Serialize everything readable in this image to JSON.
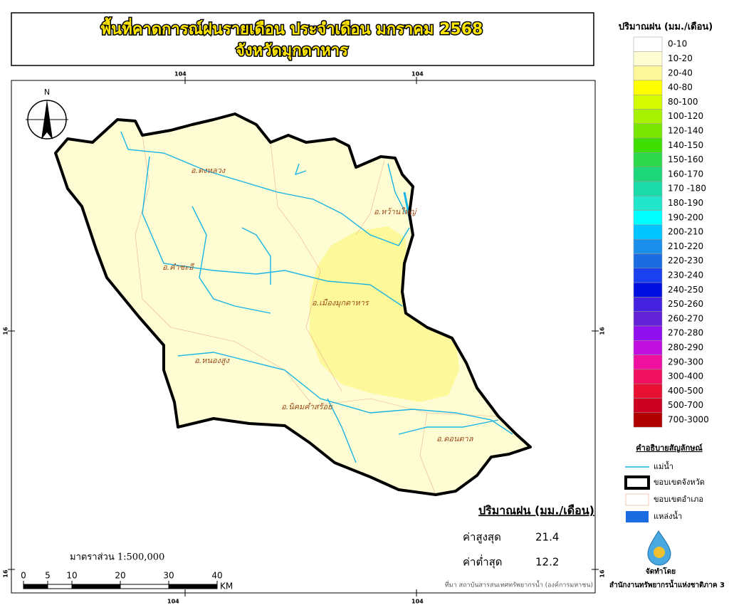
{
  "header": {
    "title": "พื้นที่คาดการณ์ฝนรายเดือน ประจำเดือน มกราคม 2568",
    "subtitle": "จังหวัดมุกดาหาร"
  },
  "grid_labels": {
    "lon": "104",
    "lat": "16"
  },
  "north": "N",
  "districts": [
    "อ.ดงหลวง",
    "อ.หว้านใหญ่",
    "อ.คำชะอี",
    "อ.เมืองมุกดาหาร",
    "อ.หนองสูง",
    "อ.นิคมคำสร้อย",
    "อ.ดอนตาล"
  ],
  "legend": {
    "title": "ปริมาณฝน (มม./เดือน)",
    "classes": [
      {
        "label": "0-10",
        "color": "#ffffff"
      },
      {
        "label": "10-20",
        "color": "#fefcd2"
      },
      {
        "label": "20-40",
        "color": "#fdf99a"
      },
      {
        "label": "40-80",
        "color": "#ffff00"
      },
      {
        "label": "80-100",
        "color": "#d4fa00"
      },
      {
        "label": "100-120",
        "color": "#a6f000"
      },
      {
        "label": "120-140",
        "color": "#78e600"
      },
      {
        "label": "140-150",
        "color": "#3ede00"
      },
      {
        "label": "150-160",
        "color": "#2ed84c"
      },
      {
        "label": "160-170",
        "color": "#1ed67a"
      },
      {
        "label": "170 -180",
        "color": "#1ddba8"
      },
      {
        "label": "180-190",
        "color": "#22e6cc"
      },
      {
        "label": "190-200",
        "color": "#00ffff"
      },
      {
        "label": "200-210",
        "color": "#00c4ff"
      },
      {
        "label": "210-220",
        "color": "#1a8ee8"
      },
      {
        "label": "220-230",
        "color": "#1a6ce0"
      },
      {
        "label": "230-240",
        "color": "#1a40f0"
      },
      {
        "label": "240-250",
        "color": "#0010e0"
      },
      {
        "label": "250-260",
        "color": "#4422e0"
      },
      {
        "label": "260-270",
        "color": "#6422d6"
      },
      {
        "label": "270-280",
        "color": "#9010f0"
      },
      {
        "label": "280-290",
        "color": "#c010e0"
      },
      {
        "label": "290-300",
        "color": "#f010a0"
      },
      {
        "label": "300-400",
        "color": "#f01060"
      },
      {
        "label": "400-500",
        "color": "#e81030"
      },
      {
        "label": "500-700",
        "color": "#cc0020"
      },
      {
        "label": "700-3000",
        "color": "#b00000"
      }
    ]
  },
  "symbols": {
    "title": "คำอธิบายสัญลักษณ์",
    "river": "แม่น้ำ",
    "province": "ขอบเขตจังหวัด",
    "district": "ขอบเขตอำเภอ",
    "water": "แหล่งน้ำ"
  },
  "stats": {
    "title": "ปริมาณฝน (มม./เดือน)",
    "max_label": "ค่าสูงสุด",
    "max": 21.4,
    "min_label": "ค่าต่ำสุด",
    "min": 12.2
  },
  "scale": {
    "text": "มาตราส่วน 1:500,000",
    "ticks": [
      0,
      5,
      10,
      20,
      30,
      40
    ],
    "unit": "KM"
  },
  "source": "ที่มา  สถาบันสารสนเทศทรัพยากรน้ำ (องค์การมหาชน)",
  "credit": {
    "label": "จัดทำโดย",
    "org": "สำนักงานทรัพยากรน้ำแห่งชาติภาค 3"
  }
}
